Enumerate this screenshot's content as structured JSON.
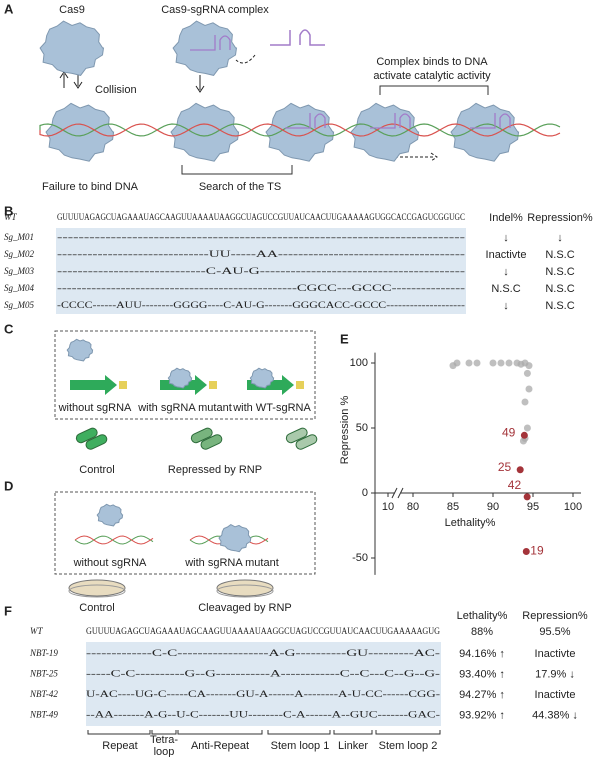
{
  "panel_labels": [
    "A",
    "B",
    "C",
    "D",
    "E",
    "F"
  ],
  "panel_a": {
    "cas9": "Cas9",
    "complex": "Cas9-sgRNA complex",
    "collision": "Collision",
    "binds": [
      "Complex binds to DNA",
      "activate catalytic activity"
    ],
    "failure": "Failure to bind DNA",
    "search": "Search of the TS"
  },
  "panel_b": {
    "indel_header": "Indel%",
    "repression_header": "Repression%",
    "rows": [
      {
        "name": "WT",
        "seq": "GUUUUAGAGCUAGAAAUAGCAAGUUAAAAUAAGGCUAGUCCGUUAUCAACUUGAAAAAGUGGCACCGAGUCGGUGC"
      },
      {
        "name": "Sg_M01",
        "seq": "----------------------------------------------------------------------------",
        "indel": "↓",
        "repression": "↓"
      },
      {
        "name": "Sg_M02",
        "seq": "------------------------------UU-----AA-------------------------------------",
        "indel": "Inactivte",
        "repression": "N.S.C"
      },
      {
        "name": "Sg_M03",
        "seq": "-----------------------------C-AU-G----------------------------------------",
        "indel": "↓",
        "repression": "N.S.C"
      },
      {
        "name": "Sg_M04",
        "seq": "-------------------------------------------------CGCC---GCCC---------------",
        "indel": "N.S.C",
        "repression": "N.S.C"
      },
      {
        "name": "Sg_M05",
        "seq": "-CCCC------AUU--------GGGG----C-AU-G-------GGGCACC-GCCC--------------------",
        "indel": "↓",
        "repression": "N.S.C"
      }
    ]
  },
  "panel_c": {
    "without": "without sgRNA",
    "mutant": "with sgRNA mutant",
    "wt": "with WT-sgRNA",
    "control": "Control",
    "repressed": "Repressed by RNP"
  },
  "panel_d": {
    "without": "without sgRNA",
    "mutant": "with sgRNA mutant",
    "control": "Control",
    "cleaved": "Cleavaged by RNP"
  },
  "chart_data": {
    "type": "scatter",
    "xlabel": "Lethality%",
    "ylabel": "Repression %",
    "xlim": [
      8,
      101
    ],
    "ylim": [
      -63,
      108
    ],
    "xticks": [
      10,
      80,
      85,
      90,
      95,
      100
    ],
    "yticks": [
      -50,
      0,
      50,
      100
    ],
    "axis_break": true,
    "series": [
      {
        "color": "#a9a9a9",
        "x": [
          85,
          85.5,
          87,
          88,
          90,
          91,
          92,
          93,
          93.5,
          94,
          94.5,
          94.3,
          94.5,
          94,
          94.3,
          94,
          93.8
        ],
        "values": [
          98,
          100,
          100,
          100,
          100,
          100,
          100,
          100,
          99,
          100,
          98,
          92,
          80,
          70,
          50,
          42,
          40
        ]
      },
      {
        "color": "#a4343a",
        "x": [
          93.92,
          93.4,
          94.27,
          94.16
        ],
        "values": [
          44.38,
          17.9,
          -3,
          -45
        ],
        "labels": [
          "49",
          "25",
          "42",
          "19"
        ]
      }
    ]
  },
  "panel_f": {
    "lethality_header": "Lethality%",
    "repression_header": "Repression%",
    "rows": [
      {
        "name": "WT",
        "seq": "GUUUUAGAGCUAGAAAUAGCAAGUUAAAAUAAGGCUAGUCCGUUAUCAACUUGAAAAAGUG",
        "lethality": "88%",
        "repression": "95.5%"
      },
      {
        "name": "NBT-19",
        "seq": "-------------C-C------------------A-G----------GU---------AC-",
        "lethality": "94.16% ↑",
        "repression": "Inactivte"
      },
      {
        "name": "NBT-25",
        "seq": "-----C-C----------G--G-----------A------------C--C---C--G--G-",
        "lethality": "93.40% ↑",
        "repression": "17.9% ↓"
      },
      {
        "name": "NBT-42",
        "seq": "U-AC----UG-C-----CA-------GU-A------A--------A-U-CC------CGG-",
        "lethality": "94.27% ↑",
        "repression": "Inactivte"
      },
      {
        "name": "NBT-49",
        "seq": "--AA-------A-G--U-C-------UU--------C-A------A--GUC-------GAC-",
        "lethality": "93.92% ↑",
        "repression": "44.38% ↓"
      }
    ],
    "regions": [
      "Repeat",
      "Tetra-",
      "loop",
      "Anti-Repeat",
      "Stem loop 1",
      "Linker",
      "Stem loop 2"
    ]
  }
}
